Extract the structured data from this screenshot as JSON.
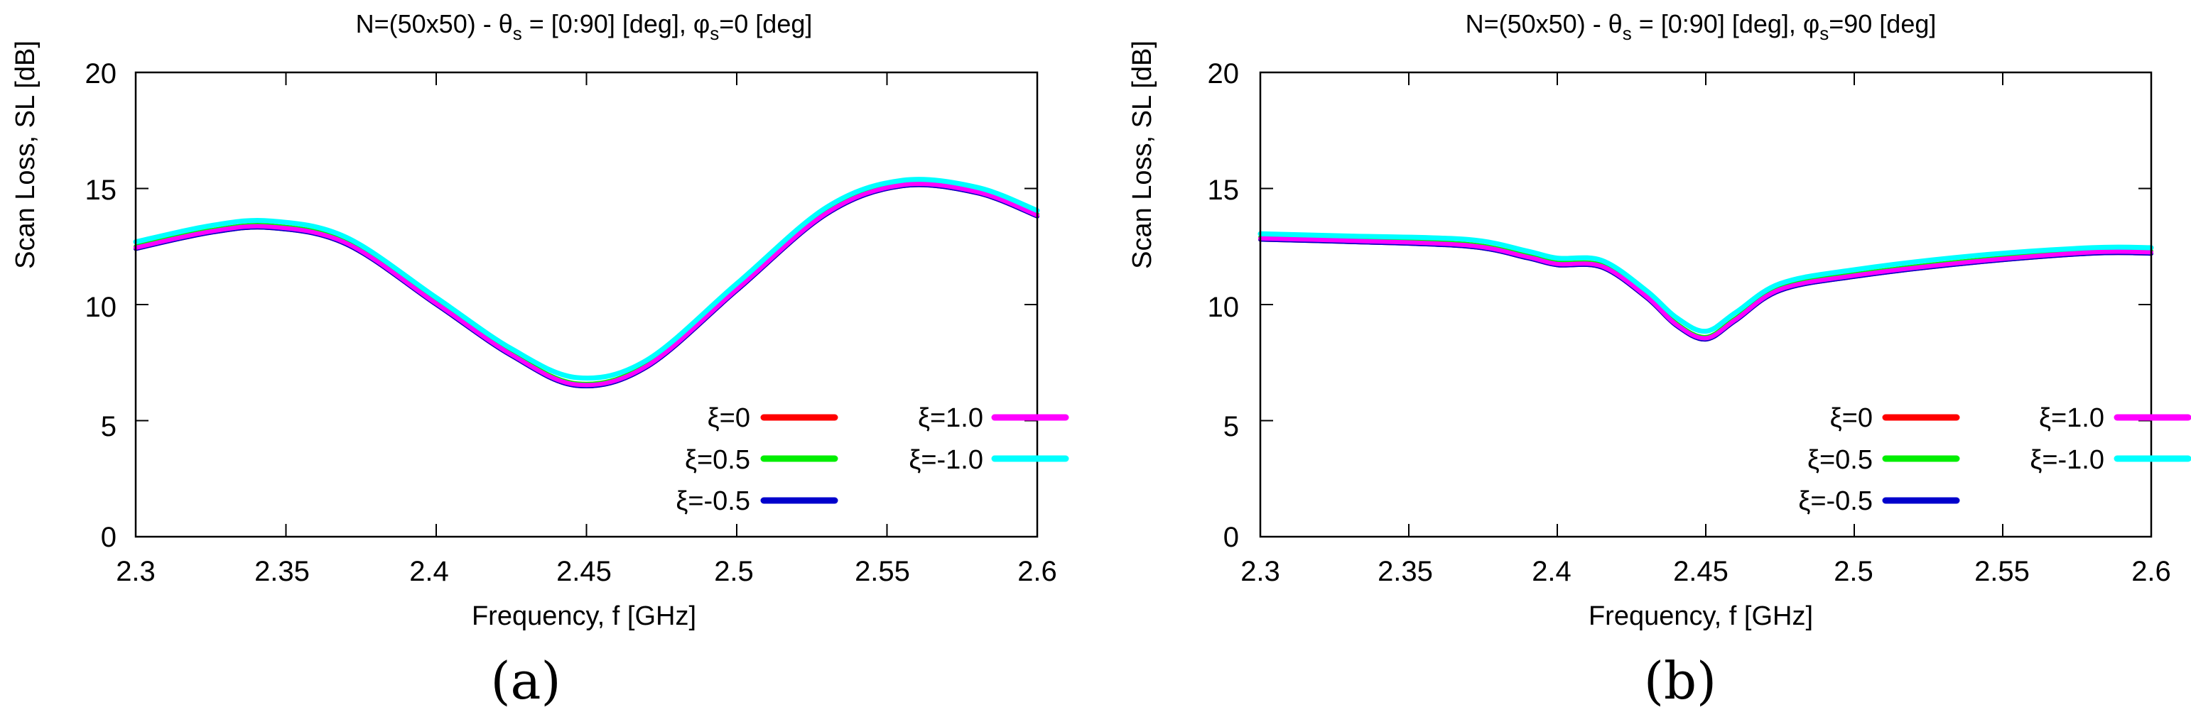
{
  "chart_data": [
    {
      "type": "line",
      "panel_label": "(a)",
      "title_parts": {
        "a": "N=(50x50) - θ",
        "b": "s",
        "c": " = [0:90] [deg], φ",
        "d": "s",
        "e": "=0 [deg]"
      },
      "xlabel": "Frequency, f [GHz]",
      "ylabel": "Scan Loss, SL [dB]",
      "xlim": [
        2.3,
        2.6
      ],
      "ylim": [
        0,
        20
      ],
      "xticks": [
        "2.3",
        "2.35",
        "2.4",
        "2.45",
        "2.5",
        "2.55",
        "2.6"
      ],
      "yticks": [
        "0",
        "5",
        "10",
        "15",
        "20"
      ],
      "grid": false,
      "legend_position": "bottom-right",
      "x": [
        2.3,
        2.325,
        2.345,
        2.37,
        2.4,
        2.425,
        2.447,
        2.47,
        2.5,
        2.53,
        2.555,
        2.58,
        2.6
      ],
      "series": [
        {
          "name": "ξ=0",
          "color": "#ff0000",
          "values": [
            12.4,
            13.1,
            13.3,
            12.6,
            10.0,
            7.8,
            6.5,
            7.3,
            10.6,
            13.9,
            15.1,
            14.8,
            13.8
          ]
        },
        {
          "name": "ξ=1.0",
          "color": "#ff00ff",
          "values": [
            12.45,
            13.15,
            13.35,
            12.65,
            10.05,
            7.85,
            6.55,
            7.35,
            10.65,
            13.95,
            15.15,
            14.85,
            13.85
          ]
        },
        {
          "name": "ξ=0.5",
          "color": "#00ee00",
          "values": [
            12.5,
            13.2,
            13.4,
            12.7,
            10.1,
            7.9,
            6.6,
            7.4,
            10.7,
            14.0,
            15.2,
            14.9,
            13.9
          ]
        },
        {
          "name": "ξ=-1.0",
          "color": "#00ffff",
          "values": [
            12.7,
            13.4,
            13.6,
            12.9,
            10.3,
            8.1,
            6.85,
            7.6,
            10.9,
            14.2,
            15.35,
            15.05,
            14.05
          ]
        },
        {
          "name": "ξ=-0.5",
          "color": "#0000cc",
          "values": [
            12.4,
            13.1,
            13.3,
            12.6,
            10.0,
            7.8,
            6.5,
            7.3,
            10.6,
            13.9,
            15.1,
            14.8,
            13.8
          ]
        }
      ]
    },
    {
      "type": "line",
      "panel_label": "(b)",
      "title_parts": {
        "a": "N=(50x50) - θ",
        "b": "s",
        "c": " = [0:90] [deg], φ",
        "d": "s",
        "e": "=90 [deg]"
      },
      "xlabel": "Frequency, f [GHz]",
      "ylabel": "Scan Loss, SL [dB]",
      "xlim": [
        2.3,
        2.6
      ],
      "ylim": [
        0,
        20
      ],
      "xticks": [
        "2.3",
        "2.35",
        "2.4",
        "2.45",
        "2.5",
        "2.55",
        "2.6"
      ],
      "yticks": [
        "0",
        "5",
        "10",
        "15",
        "20"
      ],
      "grid": false,
      "legend_position": "bottom-right",
      "x": [
        2.3,
        2.33,
        2.37,
        2.39,
        2.4,
        2.415,
        2.43,
        2.44,
        2.45,
        2.46,
        2.475,
        2.5,
        2.54,
        2.58,
        2.6
      ],
      "series": [
        {
          "name": "ξ=0",
          "color": "#ff0000",
          "values": [
            12.8,
            12.7,
            12.5,
            12.0,
            11.7,
            11.6,
            10.3,
            9.1,
            8.5,
            9.3,
            10.6,
            11.2,
            11.8,
            12.2,
            12.2
          ]
        },
        {
          "name": "ξ=1.0",
          "color": "#ff00ff",
          "values": [
            12.85,
            12.75,
            12.55,
            12.05,
            11.75,
            11.65,
            10.35,
            9.15,
            8.55,
            9.35,
            10.65,
            11.25,
            11.85,
            12.25,
            12.25
          ]
        },
        {
          "name": "ξ=0.5",
          "color": "#00ee00",
          "values": [
            12.9,
            12.8,
            12.6,
            12.1,
            11.8,
            11.7,
            10.4,
            9.2,
            8.6,
            9.4,
            10.7,
            11.3,
            11.9,
            12.3,
            12.3
          ]
        },
        {
          "name": "ξ=-1.0",
          "color": "#00ffff",
          "values": [
            13.05,
            12.95,
            12.8,
            12.3,
            12.0,
            11.9,
            10.6,
            9.45,
            8.85,
            9.65,
            10.9,
            11.5,
            12.1,
            12.45,
            12.45
          ]
        },
        {
          "name": "ξ=-0.5",
          "color": "#0000cc",
          "values": [
            12.8,
            12.7,
            12.5,
            12.0,
            11.7,
            11.6,
            10.3,
            9.1,
            8.5,
            9.3,
            10.6,
            11.2,
            11.8,
            12.2,
            12.2
          ]
        }
      ]
    }
  ]
}
